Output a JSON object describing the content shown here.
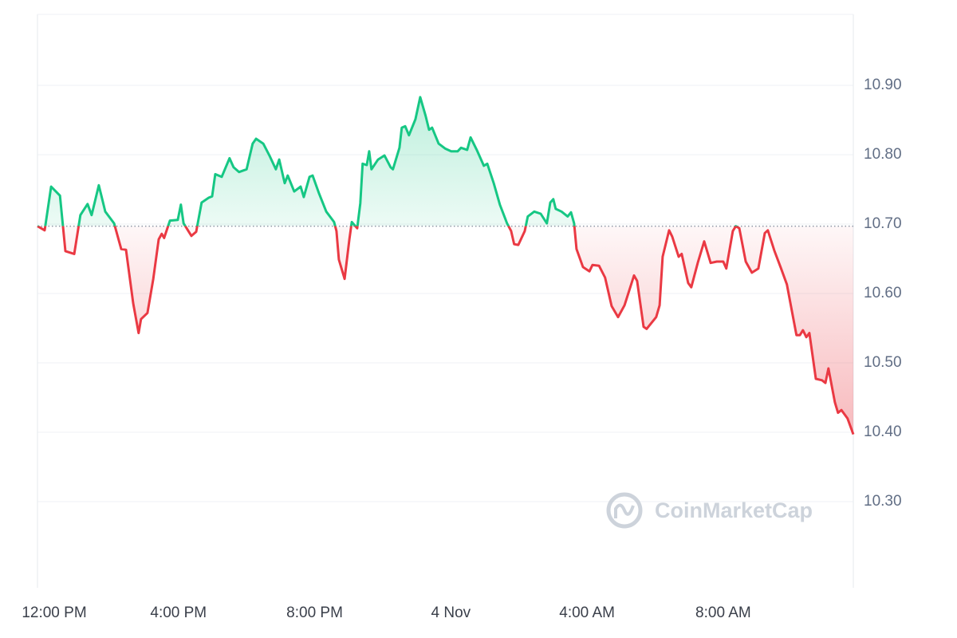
{
  "chart_data": {
    "type": "line",
    "x": [
      -0.14,
      0.07,
      0.26,
      0.52,
      0.68,
      0.94,
      1.12,
      1.33,
      1.45,
      1.66,
      1.85,
      2.11,
      2.32,
      2.46,
      2.67,
      2.83,
      2.9,
      3.09,
      3.26,
      3.42,
      3.51,
      3.58,
      3.75,
      3.98,
      4.07,
      4.15,
      4.38,
      4.52,
      4.68,
      4.89,
      4.99,
      5.08,
      5.27,
      5.5,
      5.62,
      5.78,
      6.0,
      6.18,
      6.28,
      6.49,
      6.67,
      6.86,
      6.96,
      7.12,
      7.21,
      7.4,
      7.59,
      7.68,
      7.85,
      7.94,
      8.13,
      8.34,
      8.57,
      8.64,
      8.71,
      8.88,
      9.02,
      9.09,
      9.25,
      9.34,
      9.41,
      9.53,
      9.6,
      9.67,
      9.86,
      10.05,
      10.23,
      10.3,
      10.49,
      10.56,
      10.66,
      10.77,
      10.96,
      11.1,
      11.26,
      11.36,
      11.45,
      11.64,
      11.83,
      12.01,
      12.2,
      12.3,
      12.48,
      12.58,
      12.76,
      12.97,
      13.07,
      13.26,
      13.44,
      13.65,
      13.77,
      13.86,
      13.98,
      14.17,
      14.26,
      14.45,
      14.64,
      14.82,
      14.92,
      15.01,
      15.08,
      15.25,
      15.43,
      15.53,
      15.62,
      15.69,
      15.88,
      16.07,
      16.16,
      16.35,
      16.53,
      16.72,
      16.91,
      17.1,
      17.38,
      17.47,
      17.66,
      17.75,
      18.03,
      18.13,
      18.22,
      18.41,
      18.5,
      18.69,
      18.78,
      18.97,
      19.06,
      19.25,
      19.44,
      19.63,
      19.81,
      20.0,
      20.09,
      20.28,
      20.37,
      20.47,
      20.66,
      20.84,
      21.03,
      21.22,
      21.31,
      21.5,
      21.69,
      21.87,
      22.06,
      22.15,
      22.25,
      22.34,
      22.44,
      22.53,
      22.72,
      22.9,
      23.0,
      23.09,
      23.28,
      23.37,
      23.47,
      23.65,
      23.82
    ],
    "values": [
      10.697,
      10.691,
      10.754,
      10.741,
      10.661,
      10.657,
      10.713,
      10.729,
      10.713,
      10.756,
      10.718,
      10.701,
      10.664,
      10.663,
      10.586,
      10.543,
      10.563,
      10.572,
      10.621,
      10.678,
      10.686,
      10.68,
      10.705,
      10.706,
      10.728,
      10.701,
      10.683,
      10.689,
      10.731,
      10.738,
      10.74,
      10.772,
      10.768,
      10.795,
      10.782,
      10.775,
      10.779,
      10.816,
      10.823,
      10.816,
      10.799,
      10.779,
      10.793,
      10.759,
      10.77,
      10.747,
      10.754,
      10.739,
      10.768,
      10.77,
      10.744,
      10.718,
      10.703,
      10.69,
      10.649,
      10.621,
      10.678,
      10.703,
      10.694,
      10.73,
      10.787,
      10.785,
      10.805,
      10.779,
      10.793,
      10.799,
      10.782,
      10.779,
      10.81,
      10.839,
      10.841,
      10.828,
      10.851,
      10.883,
      10.856,
      10.836,
      10.839,
      10.816,
      10.809,
      10.805,
      10.805,
      10.81,
      10.807,
      10.825,
      10.807,
      10.784,
      10.787,
      10.759,
      10.728,
      10.701,
      10.69,
      10.671,
      10.67,
      10.69,
      10.711,
      10.718,
      10.715,
      10.701,
      10.731,
      10.736,
      10.722,
      10.718,
      10.711,
      10.717,
      10.701,
      10.664,
      10.638,
      10.632,
      10.641,
      10.64,
      10.623,
      10.582,
      10.566,
      10.583,
      10.626,
      10.618,
      10.552,
      10.549,
      10.566,
      10.583,
      10.653,
      10.691,
      10.682,
      10.653,
      10.657,
      10.615,
      10.609,
      10.644,
      10.675,
      10.644,
      10.646,
      10.646,
      10.636,
      10.69,
      10.697,
      10.694,
      10.646,
      10.63,
      10.636,
      10.687,
      10.691,
      10.662,
      10.637,
      10.613,
      10.563,
      10.54,
      10.54,
      10.547,
      10.537,
      10.543,
      10.477,
      10.475,
      10.471,
      10.492,
      10.443,
      10.428,
      10.432,
      10.42,
      10.397
    ],
    "baseline": 10.697,
    "up_color": "#16c784",
    "down_color": "#ea3943",
    "xlim": [
      -0.14,
      23.82
    ],
    "xticks": [
      {
        "value": 0,
        "label": "12:00 PM"
      },
      {
        "value": 4,
        "label": "4:00 PM"
      },
      {
        "value": 8,
        "label": "8:00 PM"
      },
      {
        "value": 12,
        "label": "4 Nov"
      },
      {
        "value": 16,
        "label": "4:00 AM"
      },
      {
        "value": 20,
        "label": "8:00 AM"
      }
    ],
    "ylim": [
      10.18,
      11.0
    ],
    "yticks": [
      {
        "value": 10.3,
        "label": "10.30"
      },
      {
        "value": 10.4,
        "label": "10.40"
      },
      {
        "value": 10.5,
        "label": "10.50"
      },
      {
        "value": 10.6,
        "label": "10.60"
      },
      {
        "value": 10.7,
        "label": "10.70"
      },
      {
        "value": 10.8,
        "label": "10.80"
      },
      {
        "value": 10.9,
        "label": "10.90"
      }
    ],
    "grid": true,
    "watermark": "CoinMarketCap"
  }
}
